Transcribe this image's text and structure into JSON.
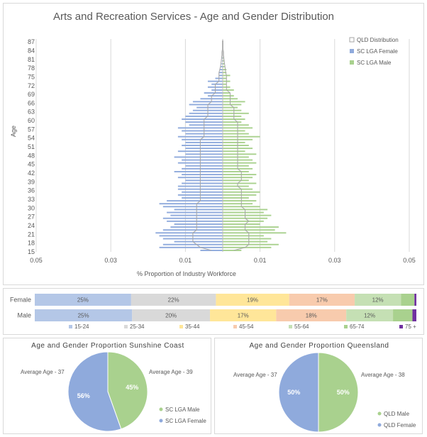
{
  "chart_data": [
    {
      "type": "bar",
      "subtype": "population-pyramid",
      "title": "Arts and Recreation Services - Age and Gender Distribution",
      "xlabel": "% Proportion of Industry Workforce",
      "ylabel": "Age",
      "x_tick_labels": [
        "0.05",
        "0.03",
        "0.01",
        "0.01",
        "0.03",
        "0.05"
      ],
      "x_ticks": [
        -0.05,
        -0.03,
        -0.01,
        0.01,
        0.03,
        0.05
      ],
      "xlim": [
        -0.05,
        0.05
      ],
      "y_tick_labels": [
        "15",
        "18",
        "21",
        "24",
        "27",
        "30",
        "33",
        "36",
        "39",
        "42",
        "45",
        "48",
        "51",
        "54",
        "57",
        "60",
        "63",
        "66",
        "69",
        "72",
        "75",
        "78",
        "81",
        "84",
        "87"
      ],
      "ylim": [
        15,
        88
      ],
      "legend": [
        "QLD Distribution",
        "SC LGA Female",
        "SC LGA Male"
      ],
      "ages": [
        15,
        16,
        17,
        18,
        19,
        20,
        21,
        22,
        23,
        24,
        25,
        26,
        27,
        28,
        29,
        30,
        31,
        32,
        33,
        34,
        35,
        36,
        37,
        38,
        39,
        40,
        41,
        42,
        43,
        44,
        45,
        46,
        47,
        48,
        49,
        50,
        51,
        52,
        53,
        54,
        55,
        56,
        57,
        58,
        59,
        60,
        61,
        62,
        63,
        64,
        65,
        66,
        67,
        68,
        69,
        70,
        71,
        72,
        73,
        74,
        75,
        76,
        77,
        78,
        79,
        80,
        81,
        82,
        83,
        84,
        85,
        86,
        87
      ],
      "series": [
        {
          "name": "SC LGA Female",
          "values": [
            0.006,
            0.017,
            0.016,
            0.013,
            0.016,
            0.017,
            0.018,
            0.016,
            0.014,
            0.013,
            0.015,
            0.016,
            0.014,
            0.015,
            0.013,
            0.016,
            0.017,
            0.015,
            0.011,
            0.012,
            0.011,
            0.012,
            0.012,
            0.011,
            0.01,
            0.012,
            0.011,
            0.013,
            0.011,
            0.01,
            0.012,
            0.011,
            0.013,
            0.01,
            0.012,
            0.01,
            0.011,
            0.01,
            0.011,
            0.012,
            0.01,
            0.011,
            0.012,
            0.009,
            0.01,
            0.011,
            0.01,
            0.009,
            0.008,
            0.007,
            0.009,
            0.008,
            0.006,
            0.004,
            0.005,
            0.003,
            0.004,
            0.003,
            0.004,
            0.002,
            0.001,
            0.001,
            0.0008,
            0.0005,
            0.0003,
            0.0002,
            0.0002,
            0.0001,
            0.0001,
            0,
            0,
            0,
            0
          ]
        },
        {
          "name": "SC LGA Male",
          "values": [
            0.005,
            0.013,
            0.015,
            0.012,
            0.013,
            0.011,
            0.017,
            0.014,
            0.015,
            0.01,
            0.011,
            0.012,
            0.013,
            0.011,
            0.012,
            0.01,
            0.008,
            0.009,
            0.007,
            0.009,
            0.01,
            0.008,
            0.007,
            0.009,
            0.007,
            0.008,
            0.009,
            0.007,
            0.008,
            0.007,
            0.009,
            0.008,
            0.007,
            0.009,
            0.006,
            0.008,
            0.007,
            0.006,
            0.008,
            0.01,
            0.007,
            0.006,
            0.008,
            0.007,
            0.005,
            0.006,
            0.005,
            0.007,
            0.005,
            0.004,
            0.005,
            0.006,
            0.004,
            0.003,
            0.002,
            0.003,
            0.002,
            0.001,
            0.002,
            0.001,
            0.002,
            0.001,
            0.001,
            0.0005,
            0.0004,
            0.0003,
            0.0002,
            0.0001,
            0.0001,
            0,
            0,
            0,
            0
          ]
        },
        {
          "name": "QLD Distribution",
          "female": [
            0.003,
            0.006,
            0.007,
            0.008,
            0.008,
            0.008,
            0.008,
            0.007,
            0.007,
            0.007,
            0.007,
            0.007,
            0.007,
            0.007,
            0.007,
            0.007,
            0.007,
            0.006,
            0.006,
            0.006,
            0.006,
            0.006,
            0.006,
            0.006,
            0.006,
            0.006,
            0.006,
            0.006,
            0.006,
            0.006,
            0.006,
            0.006,
            0.006,
            0.006,
            0.006,
            0.006,
            0.006,
            0.006,
            0.006,
            0.005,
            0.005,
            0.005,
            0.005,
            0.005,
            0.005,
            0.005,
            0.004,
            0.004,
            0.004,
            0.004,
            0.004,
            0.003,
            0.003,
            0.003,
            0.002,
            0.002,
            0.002,
            0.002,
            0.001,
            0.001,
            0.001,
            0.001,
            0.0008,
            0.0006,
            0.0005,
            0.0004,
            0.0003,
            0.0002,
            0.0002,
            0.0001,
            0.0001,
            0.0001,
            0.0001
          ],
          "male": [
            0.003,
            0.006,
            0.007,
            0.007,
            0.007,
            0.007,
            0.007,
            0.006,
            0.006,
            0.006,
            0.007,
            0.006,
            0.006,
            0.006,
            0.006,
            0.005,
            0.005,
            0.005,
            0.005,
            0.005,
            0.005,
            0.005,
            0.004,
            0.004,
            0.005,
            0.005,
            0.005,
            0.005,
            0.004,
            0.004,
            0.004,
            0.004,
            0.004,
            0.004,
            0.004,
            0.004,
            0.004,
            0.004,
            0.004,
            0.004,
            0.004,
            0.004,
            0.004,
            0.004,
            0.004,
            0.003,
            0.003,
            0.003,
            0.003,
            0.003,
            0.002,
            0.002,
            0.002,
            0.002,
            0.002,
            0.001,
            0.001,
            0.001,
            0.001,
            0.001,
            0.001,
            0.0008,
            0.0007,
            0.0006,
            0.0005,
            0.0004,
            0.0003,
            0.0002,
            0.0002,
            0.0001,
            0.0001,
            0.0001,
            0.0001
          ]
        }
      ]
    },
    {
      "type": "bar",
      "subtype": "stacked-100-horizontal",
      "categories": [
        "Female",
        "Male"
      ],
      "series": [
        {
          "name": "15-24",
          "values": [
            25,
            25
          ],
          "labels": [
            "25%",
            "25%"
          ],
          "color": "#b4c7e7"
        },
        {
          "name": "25-34",
          "values": [
            22,
            20
          ],
          "labels": [
            "22%",
            "20%"
          ],
          "color": "#d9d9d9"
        },
        {
          "name": "35-44",
          "values": [
            19,
            17
          ],
          "labels": [
            "19%",
            "17%"
          ],
          "color": "#ffe699"
        },
        {
          "name": "45-54",
          "values": [
            17,
            18
          ],
          "labels": [
            "17%",
            "18%"
          ],
          "color": "#f8cbad"
        },
        {
          "name": "55-64",
          "values": [
            12,
            12
          ],
          "labels": [
            "12%",
            "12%"
          ],
          "color": "#c5e0b4"
        },
        {
          "name": "65-74",
          "values": [
            3.5,
            5
          ],
          "labels": [
            "",
            ""
          ],
          "color": "#a9d18e"
        },
        {
          "name": "75 +",
          "values": [
            0.5,
            1
          ],
          "labels": [
            "",
            ""
          ],
          "color": "#7030a0"
        }
      ]
    },
    {
      "type": "pie",
      "title": "Age and Gender Proportion Sunshine Coast",
      "labels": [
        "SC LGA Male",
        "SC LGA Female"
      ],
      "values": [
        45,
        56
      ],
      "value_labels": [
        "45%",
        "56%"
      ],
      "colors": [
        "#a9d18e",
        "#8faadc"
      ],
      "annotations": [
        "Average Age - 39",
        "Average Age - 37"
      ]
    },
    {
      "type": "pie",
      "title": "Age and Gender Proportion Queensland",
      "labels": [
        "QLD Male",
        "QLD Female"
      ],
      "values": [
        50,
        50
      ],
      "value_labels": [
        "50%",
        "50%"
      ],
      "colors": [
        "#a9d18e",
        "#8faadc"
      ],
      "annotations": [
        "Average Age - 38",
        "Average Age - 37"
      ]
    }
  ]
}
